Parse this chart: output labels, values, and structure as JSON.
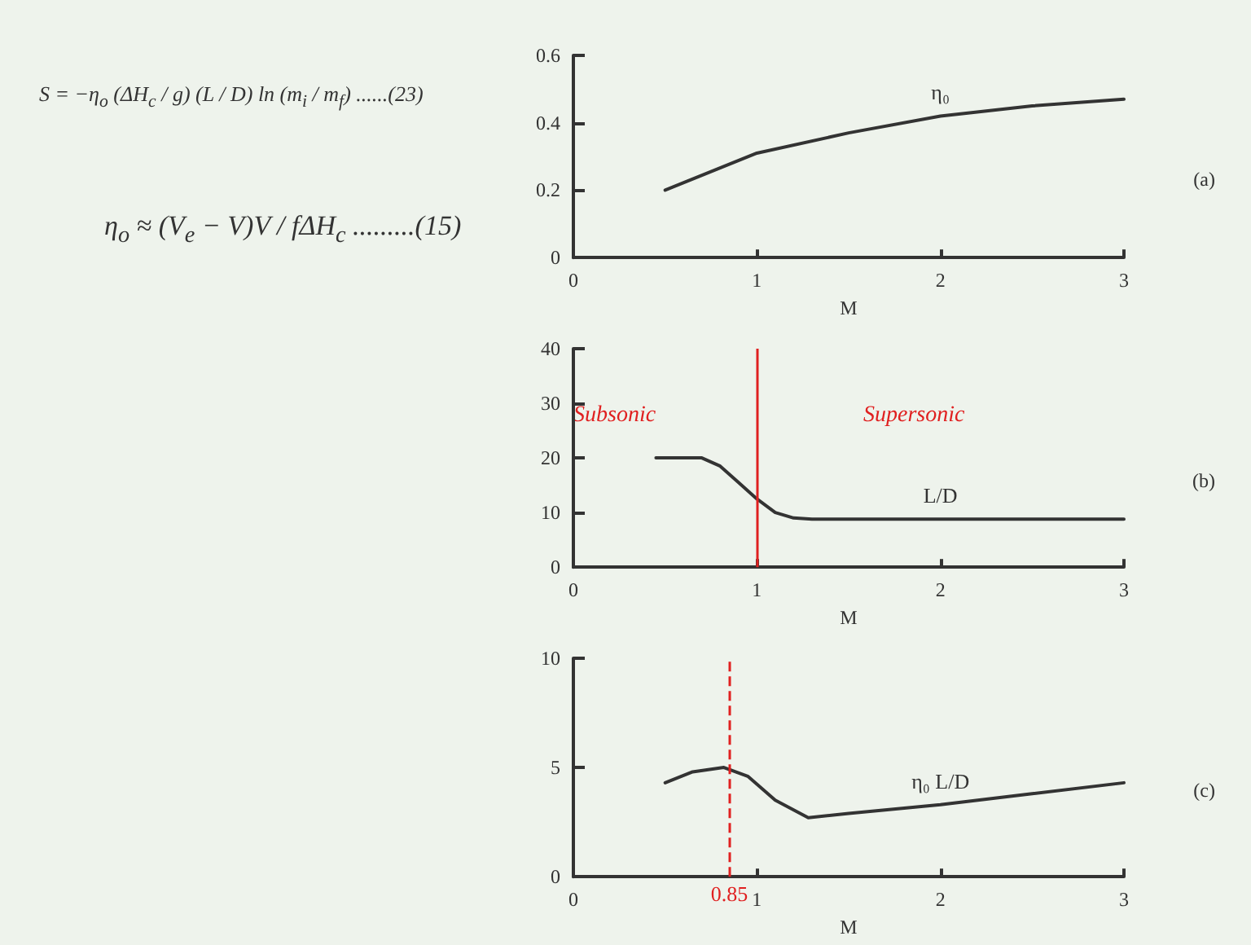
{
  "chart_data": [
    {
      "type": "line",
      "xlabel": "M",
      "xlim": [
        0,
        3
      ],
      "ylim": [
        0,
        0.6
      ],
      "xticks": [
        0,
        1,
        2,
        3
      ],
      "yticks": [
        0,
        0.2,
        0.4,
        0.6
      ],
      "grid": false,
      "legend": false,
      "marker": "none",
      "line_style": "solid",
      "annotations": [
        "(a)",
        "S = −η$_{o}$ (ΔH$_{c}$ / g) (L / D) ln (m$_{i}$ / m$_{f}$) ......(23)",
        "η$_{o}$ ≈ (V$_{e}$ − V)V / fΔH$_{c}$ .........(15)"
      ],
      "series": [
        {
          "name": "η₀",
          "color": "#333333",
          "x": [
            0.5,
            1,
            1.5,
            2,
            2.5,
            3
          ],
          "values": [
            0.2,
            0.31,
            0.37,
            0.42,
            0.45,
            0.47
          ]
        }
      ]
    },
    {
      "type": "line",
      "xlabel": "M",
      "xlim": [
        0,
        3
      ],
      "ylim": [
        0,
        40
      ],
      "xticks": [
        0,
        1,
        2,
        3
      ],
      "yticks": [
        0,
        10,
        20,
        30,
        40
      ],
      "grid": false,
      "legend": false,
      "marker": "none",
      "line_style": "solid",
      "annotations": [
        "(b)",
        "Subsonic",
        "Supersonic"
      ],
      "ref_lines": [
        {
          "axis": "x",
          "value": 1,
          "label": null,
          "color": "#e02020",
          "line_style": "solid"
        }
      ],
      "series": [
        {
          "name": "L/D",
          "color": "#333333",
          "x": [
            0.45,
            0.7,
            0.8,
            0.9,
            1.0,
            1.1,
            1.2,
            1.3,
            1.5,
            2,
            2.5,
            3
          ],
          "values": [
            20,
            20,
            18.5,
            15.5,
            12.5,
            10,
            9,
            8.8,
            8.8,
            8.8,
            8.8,
            8.8
          ]
        }
      ]
    },
    {
      "type": "line",
      "xlabel": "M",
      "annotations": [
        "(c)"
      ],
      "xlim": [
        0,
        3
      ],
      "ylim": [
        0,
        10
      ],
      "xticks": [
        0,
        1,
        2,
        3
      ],
      "yticks": [
        0,
        5,
        10
      ],
      "grid": false,
      "legend": false,
      "marker": "none",
      "line_style": "solid",
      "ref_lines": [
        {
          "axis": "x",
          "value": 0.85,
          "label": "0.85",
          "color": "#e02020",
          "line_style": "dashed"
        }
      ],
      "series": [
        {
          "name": "η₀ L/D",
          "color": "#333333",
          "x": [
            0.5,
            0.65,
            0.82,
            0.95,
            1.1,
            1.28,
            1.5,
            2,
            2.5,
            3
          ],
          "values": [
            4.3,
            4.8,
            5.0,
            4.6,
            3.5,
            2.7,
            2.9,
            3.3,
            3.8,
            4.3
          ]
        }
      ]
    }
  ]
}
